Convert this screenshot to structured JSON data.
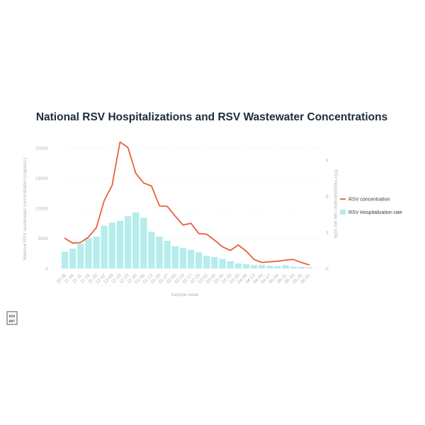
{
  "chart_data": {
    "type": "bar",
    "title": "National RSV Hospitalizations and RSV Wastewater Concentrations",
    "xlabel": "Sample week",
    "ylabel_left": "National RSV wastewater concentration (copies/L)",
    "ylabel_right": "RSV Hospitalization rate per 100k",
    "ylim_left": [
      0,
      20000
    ],
    "ylim_right": [
      0,
      10
    ],
    "yticks_left": [
      "0",
      "5000",
      "10000",
      "15000",
      "20000"
    ],
    "yticks_right": [
      "0",
      "3",
      "6",
      "9"
    ],
    "categories": [
      "10-28",
      "11-04",
      "11-11",
      "11-18",
      "11-25",
      "12-02",
      "12-09",
      "12-16",
      "12-23",
      "12-30",
      "01-06",
      "01-13",
      "01-20",
      "01-27",
      "02-03",
      "02-10",
      "02-17",
      "02-24",
      "03-02",
      "03-09",
      "03-16",
      "03-23",
      "03-30",
      "04-06",
      "04-13",
      "04-20",
      "04-27",
      "05-04",
      "05-11",
      "05-18",
      "05-25",
      "06-01"
    ],
    "xtick_labels": [
      "10-28",
      "11-04",
      "11-11",
      "11-18",
      "11-25",
      "12-02",
      "12-09",
      "12-16",
      "12-23",
      "12-30",
      "01-06",
      "01-13",
      "01-20",
      "01-27",
      "02-03",
      "02-10",
      "02-17",
      "02-24",
      "03-02",
      "03-09",
      "03-16",
      "03-23",
      "03-30",
      "04-06",
      "04-13",
      "04-20",
      "04-27",
      "05-04",
      "05-11",
      "05-18",
      "05-25",
      "06-01"
    ],
    "grid": true,
    "legend_position": "right",
    "series": [
      {
        "name": "RSV concentration",
        "type": "line",
        "axis": "left",
        "color": "#e8603c",
        "values": [
          5000,
          4200,
          4300,
          5200,
          6800,
          11300,
          13800,
          21000,
          20100,
          15800,
          14200,
          13700,
          10400,
          10300,
          8700,
          7200,
          7500,
          5800,
          5700,
          4700,
          3600,
          3000,
          3900,
          2900,
          1500,
          1000,
          1100,
          1200,
          1400,
          1500,
          1000,
          600
        ]
      },
      {
        "name": "RSV Hospitalization rate",
        "type": "bar",
        "axis": "right",
        "color": "#b5ecec",
        "values": [
          1.4,
          1.65,
          2.05,
          2.5,
          2.65,
          3.55,
          3.8,
          3.95,
          4.35,
          4.65,
          4.2,
          3.05,
          2.65,
          2.3,
          1.85,
          1.7,
          1.55,
          1.35,
          1.05,
          0.95,
          0.8,
          0.6,
          0.42,
          0.35,
          0.28,
          0.3,
          0.22,
          0.2,
          0.28,
          0.15,
          0.12,
          0.1
        ]
      }
    ]
  },
  "logo": {
    "text_line1": "BIO",
    "text_line2": "BOT"
  }
}
